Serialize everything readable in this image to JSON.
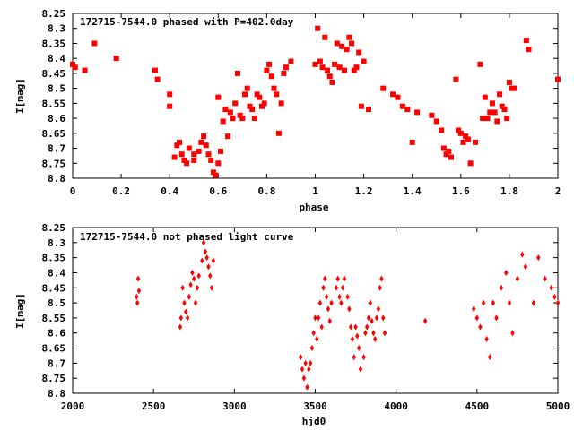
{
  "chart_data": [
    {
      "type": "scatter",
      "title": "172715-7544.0 phased with P=402.0day",
      "xlabel": "phase",
      "ylabel": "I[mag]",
      "xlim": [
        0,
        2
      ],
      "ylim": [
        8.8,
        8.25
      ],
      "y_inverted": true,
      "x_ticks": [
        "0",
        "0.2",
        "0.4",
        "0.6",
        "0.8",
        "1",
        "1.2",
        "1.4",
        "1.6",
        "1.8",
        "2"
      ],
      "y_ticks": [
        "8.25",
        "8.3",
        "8.35",
        "8.4",
        "8.45",
        "8.5",
        "8.55",
        "8.6",
        "8.65",
        "8.7",
        "8.75",
        "8.8"
      ],
      "grid": false,
      "marker_color": "#ff0000",
      "series": [
        {
          "x": [
            0.0,
            0.01,
            0.05,
            0.09,
            0.18,
            0.34,
            0.35,
            0.4,
            0.4,
            0.42,
            0.43,
            0.44,
            0.45,
            0.46,
            0.47,
            0.48,
            0.5,
            0.5,
            0.52,
            0.53,
            0.54,
            0.55,
            0.56,
            0.57,
            0.58,
            0.59,
            0.6,
            0.6,
            0.61,
            0.62,
            0.63,
            0.64,
            0.65,
            0.66,
            0.67,
            0.68,
            0.69,
            0.7,
            0.71,
            0.72,
            0.73,
            0.74,
            0.75,
            0.76,
            0.77,
            0.78,
            0.79,
            0.8,
            0.81,
            0.82,
            0.83,
            0.84,
            0.85,
            0.86,
            0.87,
            0.88,
            0.9,
            1.0,
            1.01,
            1.02,
            1.03,
            1.04,
            1.05,
            1.06,
            1.07,
            1.08,
            1.09,
            1.1,
            1.11,
            1.12,
            1.13,
            1.14,
            1.15,
            1.16,
            1.17,
            1.18,
            1.19,
            1.2,
            1.22,
            1.28,
            1.32,
            1.34,
            1.36,
            1.38,
            1.4,
            1.42,
            1.48,
            1.5,
            1.52,
            1.53,
            1.54,
            1.55,
            1.56,
            1.58,
            1.59,
            1.6,
            1.61,
            1.62,
            1.63,
            1.64,
            1.66,
            1.68,
            1.69,
            1.7,
            1.71,
            1.72,
            1.73,
            1.74,
            1.75,
            1.76,
            1.77,
            1.78,
            1.79,
            1.8,
            1.81,
            1.82,
            1.87,
            1.88,
            2.0
          ],
          "y": [
            8.42,
            8.43,
            8.44,
            8.35,
            8.4,
            8.44,
            8.47,
            8.52,
            8.56,
            8.73,
            8.69,
            8.68,
            8.72,
            8.74,
            8.75,
            8.7,
            8.74,
            8.72,
            8.71,
            8.68,
            8.66,
            8.69,
            8.72,
            8.74,
            8.78,
            8.79,
            8.75,
            8.53,
            8.71,
            8.61,
            8.57,
            8.66,
            8.58,
            8.6,
            8.55,
            8.45,
            8.59,
            8.6,
            8.52,
            8.5,
            8.56,
            8.57,
            8.6,
            8.52,
            8.53,
            8.56,
            8.55,
            8.44,
            8.42,
            8.46,
            8.5,
            8.52,
            8.65,
            8.55,
            8.45,
            8.43,
            8.41,
            8.42,
            8.3,
            8.41,
            8.43,
            8.33,
            8.44,
            8.46,
            8.48,
            8.42,
            8.35,
            8.43,
            8.36,
            8.44,
            8.37,
            8.33,
            8.35,
            8.44,
            8.43,
            8.38,
            8.56,
            8.41,
            8.57,
            8.5,
            8.52,
            8.53,
            8.56,
            8.57,
            8.68,
            8.58,
            8.59,
            8.61,
            8.64,
            8.7,
            8.72,
            8.71,
            8.73,
            8.47,
            8.64,
            8.65,
            8.68,
            8.66,
            8.67,
            8.75,
            8.68,
            8.42,
            8.6,
            8.53,
            8.6,
            8.58,
            8.55,
            8.58,
            8.61,
            8.52,
            8.56,
            8.57,
            8.6,
            8.48,
            8.5,
            8.5,
            8.34,
            8.37,
            8.47
          ],
          "marker": "square-filled"
        }
      ]
    },
    {
      "type": "scatter",
      "title": "172715-7544.0 not phased light curve",
      "xlabel": "hjd0",
      "ylabel": "I[mag]",
      "xlim": [
        2000,
        5000
      ],
      "ylim": [
        8.8,
        8.25
      ],
      "y_inverted": true,
      "x_ticks": [
        "2000",
        "2500",
        "3000",
        "3500",
        "4000",
        "4500",
        "5000"
      ],
      "y_ticks": [
        "8.25",
        "8.3",
        "8.35",
        "8.4",
        "8.45",
        "8.5",
        "8.55",
        "8.6",
        "8.65",
        "8.7",
        "8.75",
        "8.8"
      ],
      "grid": false,
      "marker_color": "#ff0000",
      "series": [
        {
          "x": [
            2395,
            2400,
            2405,
            2410,
            2665,
            2670,
            2680,
            2690,
            2700,
            2710,
            2720,
            2730,
            2740,
            2750,
            2760,
            2770,
            2780,
            2800,
            2810,
            2820,
            2830,
            2840,
            2850,
            2860,
            2870,
            3410,
            3420,
            3430,
            3440,
            3450,
            3460,
            3470,
            3480,
            3490,
            3500,
            3510,
            3520,
            3530,
            3540,
            3550,
            3560,
            3570,
            3580,
            3590,
            3600,
            3630,
            3640,
            3650,
            3660,
            3670,
            3680,
            3700,
            3710,
            3720,
            3730,
            3740,
            3750,
            3760,
            3770,
            3780,
            3800,
            3810,
            3820,
            3830,
            3840,
            3850,
            3860,
            3870,
            3880,
            3890,
            3900,
            3910,
            3920,
            3930,
            4180,
            4480,
            4500,
            4520,
            4540,
            4560,
            4580,
            4600,
            4620,
            4650,
            4680,
            4700,
            4720,
            4750,
            4780,
            4800,
            4850,
            4880,
            4920,
            4960,
            4980,
            5000
          ],
          "y": [
            8.48,
            8.5,
            8.42,
            8.46,
            8.58,
            8.55,
            8.45,
            8.5,
            8.53,
            8.55,
            8.48,
            8.44,
            8.4,
            8.42,
            8.5,
            8.45,
            8.41,
            8.36,
            8.3,
            8.33,
            8.35,
            8.38,
            8.41,
            8.45,
            8.36,
            8.68,
            8.72,
            8.75,
            8.7,
            8.78,
            8.72,
            8.7,
            8.65,
            8.6,
            8.55,
            8.62,
            8.55,
            8.5,
            8.58,
            8.45,
            8.42,
            8.48,
            8.52,
            8.56,
            8.5,
            8.45,
            8.42,
            8.48,
            8.5,
            8.45,
            8.42,
            8.48,
            8.52,
            8.58,
            8.62,
            8.68,
            8.58,
            8.61,
            8.65,
            8.72,
            8.68,
            8.6,
            8.58,
            8.55,
            8.5,
            8.56,
            8.6,
            8.62,
            8.55,
            8.52,
            8.45,
            8.42,
            8.55,
            8.6,
            8.56,
            8.52,
            8.55,
            8.58,
            8.5,
            8.62,
            8.68,
            8.5,
            8.55,
            8.45,
            8.4,
            8.5,
            8.6,
            8.42,
            8.34,
            8.38,
            8.5,
            8.35,
            8.42,
            8.45,
            8.48,
            8.5
          ],
          "marker": "diamond-filled"
        }
      ]
    }
  ]
}
